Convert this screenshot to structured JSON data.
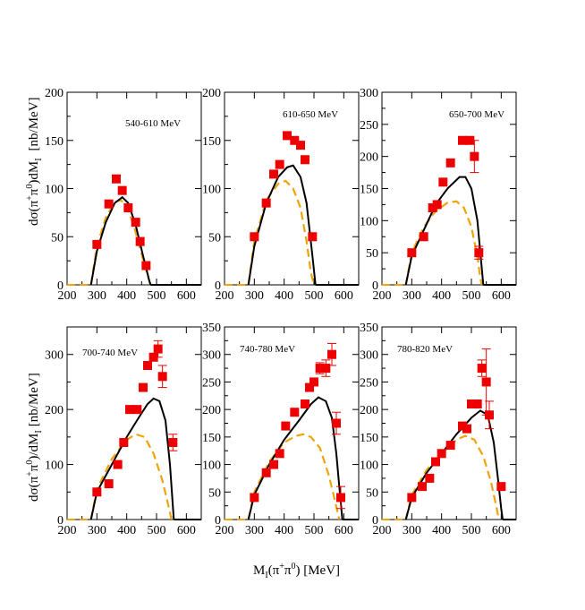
{
  "figure": {
    "xlabel_main": "M",
    "xlabel_sub": "I",
    "xlabel_paren": "(π",
    "xlabel_sup1": "+",
    "xlabel_mid": "π",
    "xlabel_sup2": "0",
    "xlabel_tail": ") [MeV]",
    "ylabel_top": {
      "pre": "dσ(π",
      "sup1": "+",
      "mid": "π",
      "sup2": "0",
      "post": ")dM",
      "sub": "I",
      "unit": "[nb/MeV]"
    },
    "ylabel_bottom": {
      "pre": "dσ(π",
      "sup1": "+",
      "mid": "π",
      "sup2": "0",
      "post": ")/dM",
      "sub": "I",
      "unit": "[nb/MeV]"
    }
  },
  "colors": {
    "data": "#ee0000",
    "solid": "#000000",
    "dashed": "#f0a30a"
  },
  "chart_data": [
    {
      "type": "scatter",
      "label": "540-610 MeV",
      "xlim": [
        200,
        650
      ],
      "ylim": [
        0,
        200
      ],
      "xticks": [
        200,
        300,
        400,
        500,
        600
      ],
      "yticks": [
        0,
        50,
        100,
        150,
        200
      ],
      "points": [
        [
          300,
          42
        ],
        [
          340,
          84
        ],
        [
          365,
          110
        ],
        [
          385,
          98
        ],
        [
          405,
          80
        ],
        [
          430,
          65
        ],
        [
          445,
          45
        ],
        [
          465,
          20
        ]
      ],
      "errors": [
        0,
        0,
        0,
        0,
        0,
        0,
        0,
        0
      ],
      "solid": [
        [
          280,
          0
        ],
        [
          300,
          35
        ],
        [
          330,
          65
        ],
        [
          360,
          85
        ],
        [
          385,
          91
        ],
        [
          405,
          85
        ],
        [
          430,
          62
        ],
        [
          455,
          30
        ],
        [
          475,
          5
        ],
        [
          480,
          0
        ]
      ],
      "dashed": [
        [
          280,
          0
        ],
        [
          300,
          40
        ],
        [
          330,
          70
        ],
        [
          360,
          86
        ],
        [
          380,
          88
        ],
        [
          400,
          82
        ],
        [
          425,
          60
        ],
        [
          450,
          32
        ],
        [
          470,
          10
        ],
        [
          480,
          0
        ]
      ]
    },
    {
      "type": "scatter",
      "label": "610-650 MeV",
      "xlim": [
        200,
        650
      ],
      "ylim": [
        0,
        200
      ],
      "xticks": [
        200,
        300,
        400,
        500,
        600
      ],
      "yticks": [
        0,
        50,
        100,
        150,
        200
      ],
      "points": [
        [
          300,
          50
        ],
        [
          340,
          85
        ],
        [
          365,
          115
        ],
        [
          385,
          125
        ],
        [
          410,
          155
        ],
        [
          435,
          150
        ],
        [
          455,
          145
        ],
        [
          470,
          130
        ],
        [
          495,
          50
        ]
      ],
      "errors": [
        0,
        0,
        0,
        0,
        0,
        0,
        0,
        0,
        0
      ],
      "solid": [
        [
          280,
          0
        ],
        [
          300,
          40
        ],
        [
          340,
          85
        ],
        [
          380,
          112
        ],
        [
          410,
          122
        ],
        [
          430,
          124
        ],
        [
          455,
          112
        ],
        [
          475,
          85
        ],
        [
          495,
          30
        ],
        [
          505,
          0
        ]
      ],
      "dashed": [
        [
          280,
          0
        ],
        [
          300,
          45
        ],
        [
          340,
          88
        ],
        [
          380,
          105
        ],
        [
          405,
          108
        ],
        [
          430,
          100
        ],
        [
          455,
          80
        ],
        [
          475,
          45
        ],
        [
          490,
          12
        ],
        [
          500,
          0
        ]
      ]
    },
    {
      "type": "scatter",
      "label": "650-700 MeV",
      "xlim": [
        200,
        650
      ],
      "ylim": [
        0,
        300
      ],
      "xticks": [
        200,
        300,
        400,
        500,
        600
      ],
      "yticks": [
        0,
        50,
        100,
        150,
        200,
        250,
        300
      ],
      "points": [
        [
          300,
          50
        ],
        [
          340,
          75
        ],
        [
          370,
          120
        ],
        [
          385,
          125
        ],
        [
          405,
          160
        ],
        [
          430,
          190
        ],
        [
          470,
          225
        ],
        [
          495,
          225
        ],
        [
          510,
          200
        ],
        [
          525,
          50
        ]
      ],
      "errors": [
        0,
        0,
        0,
        0,
        0,
        0,
        0,
        0,
        25,
        10
      ],
      "solid": [
        [
          280,
          0
        ],
        [
          300,
          45
        ],
        [
          340,
          85
        ],
        [
          380,
          125
        ],
        [
          420,
          150
        ],
        [
          460,
          168
        ],
        [
          480,
          168
        ],
        [
          500,
          150
        ],
        [
          520,
          100
        ],
        [
          530,
          50
        ],
        [
          540,
          0
        ]
      ],
      "dashed": [
        [
          280,
          0
        ],
        [
          300,
          50
        ],
        [
          340,
          90
        ],
        [
          380,
          115
        ],
        [
          420,
          128
        ],
        [
          450,
          130
        ],
        [
          475,
          120
        ],
        [
          500,
          90
        ],
        [
          520,
          45
        ],
        [
          530,
          10
        ],
        [
          535,
          0
        ]
      ]
    },
    {
      "type": "scatter",
      "label": "700-740 MeV",
      "xlim": [
        200,
        650
      ],
      "ylim": [
        0,
        350
      ],
      "xticks": [
        200,
        300,
        400,
        500,
        600
      ],
      "yticks": [
        0,
        100,
        200,
        300
      ],
      "points": [
        [
          300,
          50
        ],
        [
          340,
          65
        ],
        [
          370,
          100
        ],
        [
          390,
          140
        ],
        [
          410,
          200
        ],
        [
          435,
          200
        ],
        [
          455,
          240
        ],
        [
          470,
          280
        ],
        [
          490,
          295
        ],
        [
          505,
          310
        ],
        [
          520,
          260
        ],
        [
          555,
          140
        ]
      ],
      "errors": [
        0,
        0,
        0,
        0,
        0,
        0,
        0,
        0,
        0,
        15,
        20,
        15
      ],
      "solid": [
        [
          280,
          0
        ],
        [
          300,
          50
        ],
        [
          350,
          100
        ],
        [
          400,
          150
        ],
        [
          440,
          185
        ],
        [
          470,
          210
        ],
        [
          490,
          220
        ],
        [
          510,
          215
        ],
        [
          530,
          180
        ],
        [
          545,
          100
        ],
        [
          558,
          0
        ]
      ],
      "dashed": [
        [
          280,
          0
        ],
        [
          300,
          55
        ],
        [
          350,
          110
        ],
        [
          400,
          145
        ],
        [
          430,
          155
        ],
        [
          460,
          150
        ],
        [
          490,
          120
        ],
        [
          520,
          70
        ],
        [
          540,
          25
        ],
        [
          550,
          0
        ]
      ]
    },
    {
      "type": "scatter",
      "label": "740-780 MeV",
      "xlim": [
        200,
        650
      ],
      "ylim": [
        0,
        350
      ],
      "xticks": [
        200,
        300,
        400,
        500,
        600
      ],
      "yticks": [
        0,
        50,
        100,
        150,
        200,
        250,
        300,
        350
      ],
      "points": [
        [
          300,
          40
        ],
        [
          340,
          85
        ],
        [
          365,
          100
        ],
        [
          385,
          120
        ],
        [
          405,
          170
        ],
        [
          435,
          195
        ],
        [
          470,
          210
        ],
        [
          485,
          240
        ],
        [
          500,
          250
        ],
        [
          520,
          275
        ],
        [
          540,
          275
        ],
        [
          560,
          300
        ],
        [
          575,
          175
        ],
        [
          590,
          40
        ]
      ],
      "errors": [
        0,
        0,
        0,
        0,
        0,
        0,
        0,
        0,
        0,
        10,
        15,
        20,
        20,
        20
      ],
      "solid": [
        [
          280,
          0
        ],
        [
          300,
          45
        ],
        [
          350,
          100
        ],
        [
          400,
          145
        ],
        [
          450,
          180
        ],
        [
          490,
          210
        ],
        [
          515,
          222
        ],
        [
          540,
          215
        ],
        [
          560,
          185
        ],
        [
          575,
          120
        ],
        [
          585,
          60
        ],
        [
          595,
          0
        ]
      ],
      "dashed": [
        [
          280,
          0
        ],
        [
          300,
          50
        ],
        [
          350,
          105
        ],
        [
          400,
          140
        ],
        [
          440,
          152
        ],
        [
          465,
          155
        ],
        [
          490,
          150
        ],
        [
          520,
          130
        ],
        [
          550,
          80
        ],
        [
          570,
          35
        ],
        [
          585,
          0
        ]
      ]
    },
    {
      "type": "scatter",
      "label": "780-820 MeV",
      "xlim": [
        200,
        650
      ],
      "ylim": [
        0,
        350
      ],
      "xticks": [
        200,
        300,
        400,
        500,
        600
      ],
      "yticks": [
        0,
        50,
        100,
        150,
        200,
        250,
        300,
        350
      ],
      "points": [
        [
          300,
          40
        ],
        [
          335,
          60
        ],
        [
          360,
          75
        ],
        [
          380,
          105
        ],
        [
          400,
          120
        ],
        [
          430,
          135
        ],
        [
          470,
          170
        ],
        [
          485,
          165
        ],
        [
          500,
          210
        ],
        [
          520,
          210
        ],
        [
          535,
          275
        ],
        [
          550,
          250
        ],
        [
          560,
          190
        ],
        [
          600,
          60
        ]
      ],
      "errors": [
        0,
        0,
        0,
        0,
        0,
        0,
        0,
        0,
        0,
        0,
        15,
        60,
        25,
        0
      ],
      "solid": [
        [
          280,
          0
        ],
        [
          300,
          40
        ],
        [
          350,
          85
        ],
        [
          400,
          120
        ],
        [
          450,
          155
        ],
        [
          500,
          185
        ],
        [
          530,
          198
        ],
        [
          555,
          190
        ],
        [
          575,
          140
        ],
        [
          590,
          70
        ],
        [
          600,
          20
        ],
        [
          605,
          0
        ]
      ],
      "dashed": [
        [
          280,
          0
        ],
        [
          300,
          45
        ],
        [
          350,
          90
        ],
        [
          400,
          120
        ],
        [
          450,
          145
        ],
        [
          480,
          152
        ],
        [
          510,
          145
        ],
        [
          540,
          115
        ],
        [
          565,
          70
        ],
        [
          585,
          20
        ],
        [
          592,
          0
        ]
      ]
    }
  ]
}
